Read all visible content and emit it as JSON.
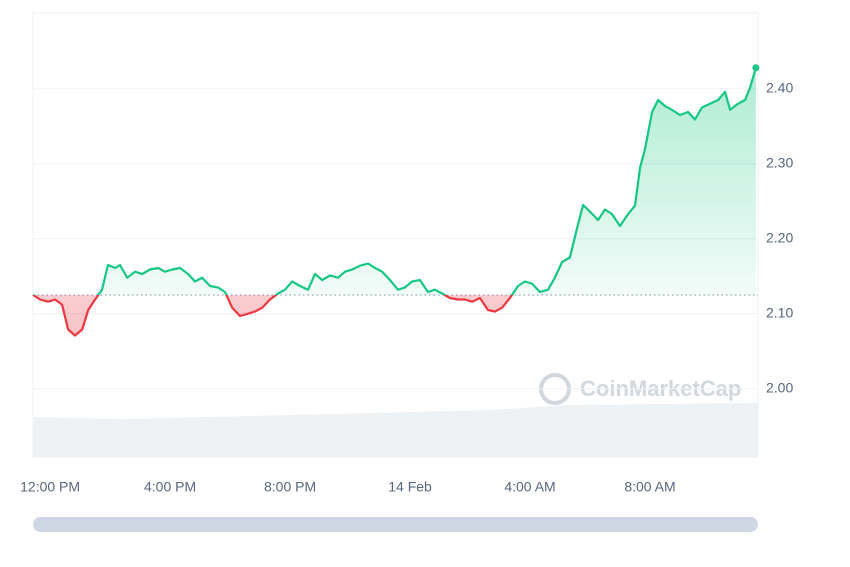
{
  "chart_data": {
    "type": "line",
    "watermark": "CoinMarketCap",
    "x": [
      -0.57,
      -0.33,
      -0.07,
      0.17,
      0.4,
      0.6,
      0.83,
      1.07,
      1.27,
      1.5,
      1.73,
      1.93,
      2.17,
      2.33,
      2.57,
      2.83,
      3.07,
      3.33,
      3.6,
      3.83,
      4.07,
      4.33,
      4.6,
      4.83,
      5.07,
      5.33,
      5.6,
      5.83,
      6.07,
      6.33,
      6.6,
      6.83,
      7.07,
      7.33,
      7.6,
      7.83,
      8.07,
      8.33,
      8.6,
      8.83,
      9.07,
      9.33,
      9.6,
      9.83,
      10.07,
      10.33,
      10.6,
      10.83,
      11.07,
      11.33,
      11.6,
      11.83,
      12.07,
      12.33,
      12.6,
      12.83,
      13.07,
      13.33,
      13.6,
      13.83,
      14.07,
      14.33,
      14.6,
      14.83,
      15.07,
      15.33,
      15.6,
      15.83,
      16.07,
      16.33,
      16.6,
      16.83,
      17.07,
      17.33,
      17.6,
      17.77,
      18,
      18.27,
      18.5,
      18.73,
      19,
      19.27,
      19.5,
      19.67,
      19.83,
      20.07,
      20.27,
      20.5,
      20.73,
      21,
      21.27,
      21.5,
      21.73,
      22,
      22.27,
      22.5,
      22.67,
      22.93,
      23.17,
      23.33,
      23.53
    ],
    "series": [
      {
        "color": "#16c784",
        "values": [
          2.125,
          2.119,
          2.116,
          2.119,
          2.112,
          2.079,
          2.071,
          2.079,
          2.105,
          2.119,
          2.132,
          2.165,
          2.161,
          2.165,
          2.148,
          2.156,
          2.153,
          2.159,
          2.161,
          2.156,
          2.159,
          2.161,
          2.153,
          2.143,
          2.148,
          2.137,
          2.135,
          2.129,
          2.108,
          2.097,
          2.1,
          2.103,
          2.108,
          2.119,
          2.127,
          2.132,
          2.143,
          2.137,
          2.132,
          2.153,
          2.145,
          2.151,
          2.148,
          2.156,
          2.159,
          2.164,
          2.167,
          2.161,
          2.156,
          2.145,
          2.132,
          2.135,
          2.143,
          2.145,
          2.129,
          2.132,
          2.127,
          2.121,
          2.119,
          2.119,
          2.116,
          2.121,
          2.105,
          2.103,
          2.108,
          2.121,
          2.137,
          2.143,
          2.14,
          2.129,
          2.132,
          2.148,
          2.169,
          2.175,
          2.219,
          2.245,
          2.236,
          2.225,
          2.239,
          2.233,
          2.217,
          2.233,
          2.244,
          2.295,
          2.319,
          2.369,
          2.385,
          2.377,
          2.372,
          2.365,
          2.369,
          2.359,
          2.375,
          2.38,
          2.385,
          2.396,
          2.372,
          2.38,
          2.385,
          2.401,
          2.428
        ]
      }
    ],
    "down_color": "#ea3943",
    "baseline": 2.125,
    "xlim": [
      -0.57,
      23.6
    ],
    "xticks": [
      {
        "value": 0,
        "label": "12:00 PM"
      },
      {
        "value": 4,
        "label": "4:00 PM"
      },
      {
        "value": 8,
        "label": "8:00 PM"
      },
      {
        "value": 12,
        "label": "14 Feb"
      },
      {
        "value": 16,
        "label": "4:00 AM"
      },
      {
        "value": 20,
        "label": "8:00 AM"
      }
    ],
    "ylim": [
      1.909,
      2.501
    ],
    "yticks": [
      {
        "value": 2.0,
        "label": "2.00"
      },
      {
        "value": 2.1,
        "label": "2.10"
      },
      {
        "value": 2.2,
        "label": "2.20"
      },
      {
        "value": 2.3,
        "label": "2.30"
      },
      {
        "value": 2.4,
        "label": "2.40"
      }
    ],
    "grid": true
  }
}
